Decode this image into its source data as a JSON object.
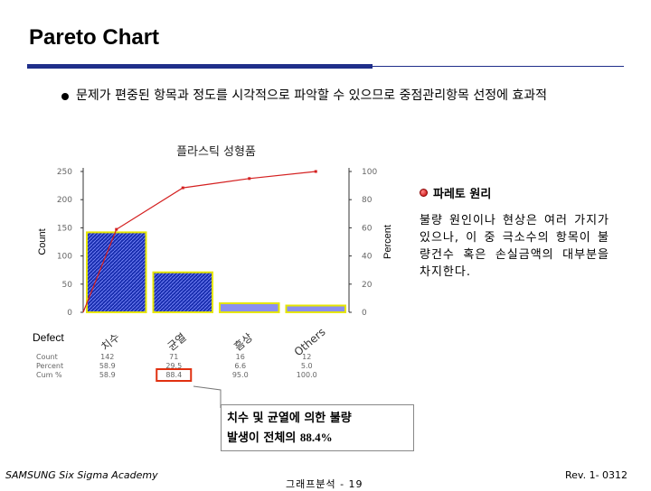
{
  "slide": {
    "title": "Pareto Chart",
    "bullet": "문제가 편중된 항목과 정도를 시각적으로 파악할 수 있으므로 중점관리항목 선정에 효과적"
  },
  "chart_data": {
    "type": "bar",
    "title": "플라스틱 성형품",
    "categories": [
      "치수",
      "균열",
      "흠상",
      "Others"
    ],
    "series": [
      {
        "name": "Count",
        "values": [
          142,
          71,
          16,
          12
        ]
      },
      {
        "name": "Percent",
        "type": "line",
        "values": [
          58.9,
          88.4,
          95.0,
          100.0
        ]
      }
    ],
    "xlabel": "Defect",
    "ylabel": "Count",
    "y2label": "Percent",
    "ylim": [
      0,
      250
    ],
    "y2lim": [
      0,
      100
    ],
    "yticks": [
      "0",
      "50",
      "100",
      "150",
      "200",
      "250"
    ],
    "y2ticks": [
      "0",
      "20",
      "40",
      "60",
      "80",
      "100"
    ],
    "table": {
      "row_labels": [
        "Count",
        "Percent",
        "Cum %"
      ],
      "rows": [
        [
          "142",
          "71",
          "16",
          "12"
        ],
        [
          "58.9",
          "29.5",
          "6.6",
          "5.0"
        ],
        [
          "58.9",
          "88.4",
          "95.0",
          "100.0"
        ]
      ]
    },
    "highlight": "88.4",
    "colors": {
      "bars_main": "#1a2fb0",
      "bars_minor": "#8a8ff0",
      "bar_border": "#e6e600",
      "line": "#d42020"
    }
  },
  "principle": {
    "heading": "파레토 원리",
    "body": "불량 원인이나 현상은 여러 가지가 있으나, 이 중 극소수의 항목이 불량건수 혹은 손실금액의 대부분을 차지한다."
  },
  "callout": {
    "line1": "치수 및 균열에 의한 불량",
    "line2_prefix": "발생이 전체의 ",
    "line2_value": "88.4%"
  },
  "footer": {
    "left": "SAMSUNG Six Sigma Academy",
    "center": "그래프분석 - 19",
    "right": "Rev. 1- 0312"
  }
}
